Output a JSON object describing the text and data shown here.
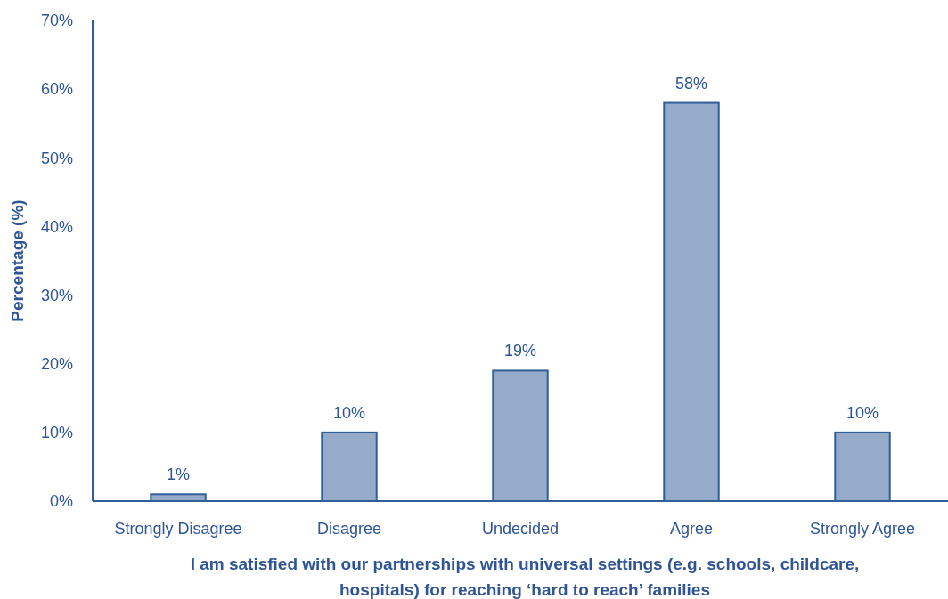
{
  "chart_data": {
    "type": "bar",
    "xlabel": "I am satisfied with our partnerships with universal settings (e.g. schools, childcare, hospitals) for reaching ‘hard to reach’ families",
    "ylabel": "Percentage (%)",
    "categories": [
      "Strongly Disagree",
      "Disagree",
      "Undecided",
      "Agree",
      "Strongly Agree"
    ],
    "values": [
      1,
      10,
      19,
      58,
      10
    ],
    "value_labels": [
      "1%",
      "10%",
      "19%",
      "58%",
      "10%"
    ],
    "color": "#95abc9",
    "ylim": [
      0,
      70
    ],
    "yticks": [
      {
        "value": 0,
        "label": "0%"
      },
      {
        "value": 10,
        "label": "10%"
      },
      {
        "value": 20,
        "label": "20%"
      },
      {
        "value": 30,
        "label": "30%"
      },
      {
        "value": 40,
        "label": "40%"
      },
      {
        "value": 50,
        "label": "50%"
      },
      {
        "value": 60,
        "label": "60%"
      },
      {
        "value": 70,
        "label": "70%"
      }
    ],
    "grid": false
  }
}
